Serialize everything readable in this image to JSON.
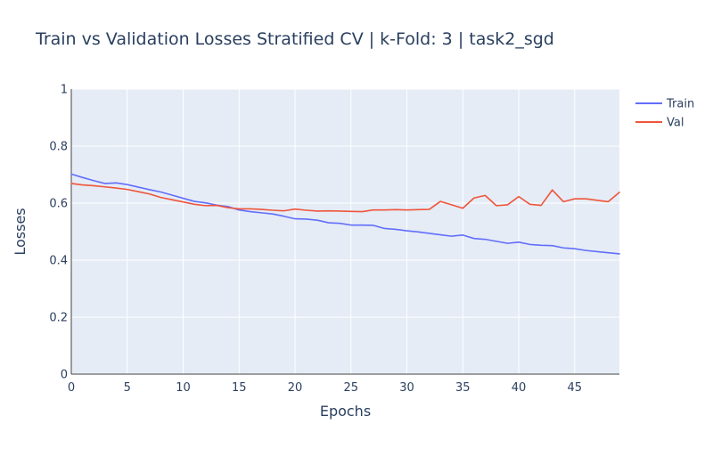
{
  "chart_data": {
    "type": "line",
    "title": "Train vs Validation Losses Stratified CV | k-Fold: 3 | task2_sgd",
    "xlabel": "Epochs",
    "ylabel": "Losses",
    "xlim": [
      0,
      49
    ],
    "ylim": [
      0,
      1
    ],
    "xticks": [
      "0",
      "5",
      "10",
      "15",
      "20",
      "25",
      "30",
      "35",
      "40",
      "45"
    ],
    "yticks": [
      "0",
      "0.2",
      "0.4",
      "0.6",
      "0.8",
      "1"
    ],
    "grid": true,
    "legend_position": "top-right",
    "x": [
      0,
      1,
      2,
      3,
      4,
      5,
      6,
      7,
      8,
      9,
      10,
      11,
      12,
      13,
      14,
      15,
      16,
      17,
      18,
      19,
      20,
      21,
      22,
      23,
      24,
      25,
      26,
      27,
      28,
      29,
      30,
      31,
      32,
      33,
      34,
      35,
      36,
      37,
      38,
      39,
      40,
      41,
      42,
      43,
      44,
      45,
      46,
      47,
      48,
      49
    ],
    "series": [
      {
        "name": "Train",
        "color": "#636efa",
        "values": [
          0.702,
          0.69,
          0.679,
          0.669,
          0.671,
          0.665,
          0.656,
          0.647,
          0.639,
          0.628,
          0.617,
          0.606,
          0.601,
          0.593,
          0.588,
          0.576,
          0.57,
          0.566,
          0.562,
          0.554,
          0.545,
          0.544,
          0.54,
          0.531,
          0.529,
          0.523,
          0.523,
          0.522,
          0.511,
          0.508,
          0.503,
          0.499,
          0.494,
          0.489,
          0.484,
          0.488,
          0.476,
          0.473,
          0.466,
          0.459,
          0.463,
          0.455,
          0.452,
          0.451,
          0.443,
          0.44,
          0.434,
          0.43,
          0.426,
          0.422
        ]
      },
      {
        "name": "Val",
        "color": "#ef553b",
        "values": [
          0.669,
          0.664,
          0.661,
          0.657,
          0.653,
          0.648,
          0.64,
          0.632,
          0.62,
          0.612,
          0.604,
          0.596,
          0.591,
          0.592,
          0.584,
          0.58,
          0.58,
          0.578,
          0.575,
          0.573,
          0.579,
          0.575,
          0.572,
          0.573,
          0.572,
          0.571,
          0.57,
          0.576,
          0.576,
          0.577,
          0.576,
          0.577,
          0.578,
          0.606,
          0.594,
          0.582,
          0.618,
          0.627,
          0.591,
          0.594,
          0.623,
          0.596,
          0.592,
          0.646,
          0.605,
          0.615,
          0.615,
          0.61,
          0.605,
          0.638
        ]
      }
    ]
  },
  "colors": {
    "plot_background": "#e5ecf6",
    "grid": "#ffffff",
    "text": "#2a3f5f"
  }
}
